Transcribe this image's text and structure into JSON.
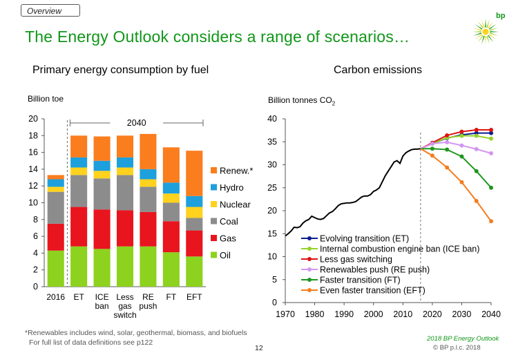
{
  "header": {
    "tab_label": "Overview",
    "title": "The Energy Outlook considers a range of scenarios…",
    "logo_text": "bp"
  },
  "left_panel": {
    "subtitle": "Primary energy consumption by fuel",
    "unit": "Billion toe"
  },
  "right_panel": {
    "subtitle": "Carbon emissions",
    "unit_main": "Billion tonnes CO",
    "unit_sub": "2"
  },
  "footer": {
    "note": "*Renewables includes wind, solar, geothermal, biomass, and biofuels",
    "note2": "For full list of data definitions see p122",
    "page_number": "12",
    "source": "2018 BP Energy Outlook",
    "copyright": "© BP p.l.c. 2018"
  },
  "chart_data": [
    {
      "type": "bar",
      "stacked": true,
      "categories": [
        "2016",
        "ET",
        "ICE ban",
        "Less gas switch",
        "RE push",
        "FT",
        "EFT"
      ],
      "category_lines": [
        [
          "2016"
        ],
        [
          "ET"
        ],
        [
          "ICE",
          "ban"
        ],
        [
          "Less",
          "gas",
          "switch"
        ],
        [
          "RE",
          "push"
        ],
        [
          "FT"
        ],
        [
          "EFT"
        ]
      ],
      "ylim": [
        0,
        20
      ],
      "yticks": [
        0,
        2,
        4,
        6,
        8,
        10,
        12,
        14,
        16,
        18,
        20
      ],
      "bracket_label": "2040",
      "legend_position": "right",
      "series": [
        {
          "name": "Oil",
          "color": "#8cd21e",
          "values": [
            4.3,
            4.8,
            4.5,
            4.8,
            4.8,
            4.1,
            3.6
          ]
        },
        {
          "name": "Gas",
          "color": "#e8141e",
          "values": [
            3.2,
            4.7,
            4.7,
            4.3,
            4.1,
            3.7,
            3.1
          ]
        },
        {
          "name": "Coal",
          "color": "#8c8c8c",
          "values": [
            3.8,
            3.8,
            3.7,
            4.2,
            3.0,
            2.2,
            1.5
          ]
        },
        {
          "name": "Nuclear",
          "color": "#ffd21e",
          "values": [
            0.6,
            0.9,
            0.9,
            0.9,
            0.9,
            1.1,
            1.3
          ]
        },
        {
          "name": "Hydro",
          "color": "#1ea0dc",
          "values": [
            0.9,
            1.2,
            1.2,
            1.2,
            1.2,
            1.3,
            1.3
          ]
        },
        {
          "name": "Renew.*",
          "color": "#fa7d1e",
          "values": [
            0.5,
            2.6,
            2.9,
            2.6,
            4.2,
            4.2,
            5.4
          ]
        }
      ]
    },
    {
      "type": "line",
      "xlim": [
        1970,
        2040
      ],
      "ylim": [
        0,
        40
      ],
      "xticks": [
        1970,
        1980,
        1990,
        2000,
        2010,
        2020,
        2030,
        2040
      ],
      "yticks": [
        0,
        5,
        10,
        15,
        20,
        25,
        30,
        35,
        40
      ],
      "divider_x": 2016,
      "legend_position": "bottom-left",
      "history": {
        "color": "#000000",
        "x": [
          1970,
          1971,
          1972,
          1973,
          1974,
          1975,
          1976,
          1977,
          1978,
          1979,
          1980,
          1981,
          1982,
          1983,
          1984,
          1985,
          1986,
          1987,
          1988,
          1989,
          1990,
          1991,
          1992,
          1993,
          1994,
          1995,
          1996,
          1997,
          1998,
          1999,
          2000,
          2001,
          2002,
          2003,
          2004,
          2005,
          2006,
          2007,
          2008,
          2009,
          2010,
          2011,
          2012,
          2013,
          2014,
          2015,
          2016
        ],
        "y": [
          14.5,
          15.0,
          15.6,
          16.4,
          16.3,
          16.5,
          17.3,
          17.8,
          18.1,
          18.8,
          18.5,
          18.2,
          18.1,
          18.3,
          18.9,
          19.5,
          19.8,
          20.4,
          21.1,
          21.5,
          21.6,
          21.7,
          21.7,
          21.8,
          22.0,
          22.5,
          23.0,
          23.2,
          23.2,
          23.5,
          24.2,
          24.5,
          25.0,
          26.3,
          27.6,
          28.6,
          29.6,
          30.6,
          30.9,
          30.3,
          31.9,
          32.6,
          33.0,
          33.3,
          33.4,
          33.4,
          33.5
        ]
      },
      "x": [
        2016,
        2020,
        2025,
        2030,
        2035,
        2040
      ],
      "series": [
        {
          "name": "Evolving transition (ET)",
          "color": "#0a1e8c",
          "values": [
            33.5,
            34.6,
            35.8,
            36.5,
            36.9,
            36.9
          ]
        },
        {
          "name": "Internal combustion engine ban (ICE ban)",
          "color": "#96d228",
          "values": [
            33.5,
            34.6,
            35.9,
            36.3,
            36.3,
            35.7
          ]
        },
        {
          "name": "Less gas switching",
          "color": "#dc1414",
          "values": [
            33.5,
            34.8,
            36.4,
            37.2,
            37.6,
            37.6
          ]
        },
        {
          "name": "Renewables push (RE push)",
          "color": "#d296f0",
          "values": [
            33.5,
            34.6,
            34.9,
            34.2,
            33.4,
            32.5
          ]
        },
        {
          "name": "Faster transition (FT)",
          "color": "#1e961e",
          "values": [
            33.5,
            33.5,
            33.3,
            31.8,
            28.6,
            25.0
          ]
        },
        {
          "name": "Even faster transition (EFT)",
          "color": "#f57d1e",
          "values": [
            33.5,
            32.0,
            29.4,
            26.2,
            22.1,
            17.7
          ]
        }
      ]
    }
  ]
}
